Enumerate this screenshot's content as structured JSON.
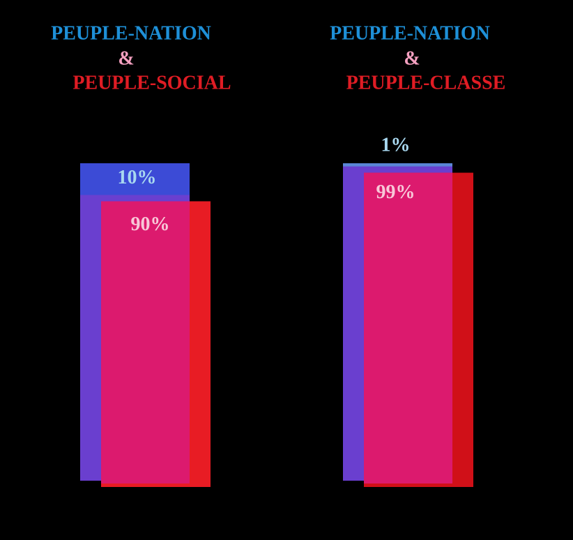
{
  "chart_data": [
    {
      "type": "overlap-bar",
      "title_lines": [
        "PEUPLE-NATION",
        "&",
        "PEUPLE-SOCIAL"
      ],
      "values": [
        10,
        90
      ],
      "value_labels": [
        "10%",
        "90%"
      ],
      "colors": [
        "#3c4bd6",
        "#dc1a6e"
      ],
      "side_color": "#e81c24",
      "back_color": "#6a3fcf",
      "ylim": [
        0,
        100
      ]
    },
    {
      "type": "overlap-bar",
      "title_lines": [
        "PEUPLE-NATION",
        "&",
        "PEUPLE-CLASSE"
      ],
      "values": [
        1,
        99
      ],
      "value_labels": [
        "1%",
        "99%"
      ],
      "colors": [
        "#5a86d6",
        "#dc1a6e"
      ],
      "side_color": "#d01018",
      "back_color": "#6a3fcf",
      "ylim": [
        0,
        100
      ]
    }
  ]
}
